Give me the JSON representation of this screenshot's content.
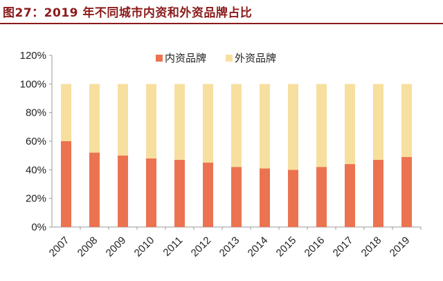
{
  "title": "图27：2019 年不同城市内资和外资品牌占比",
  "colors": {
    "domestic": "#ec7350",
    "foreign": "#f7df9f",
    "title": "#8b1a1a",
    "axis": "#999999"
  },
  "chart_data": {
    "type": "bar",
    "stacked": true,
    "title": "图27：2019 年不同城市内资和外资品牌占比",
    "categories": [
      "2007",
      "2008",
      "2009",
      "2010",
      "2011",
      "2012",
      "2013",
      "2014",
      "2015",
      "2016",
      "2017",
      "2018",
      "2019"
    ],
    "series": [
      {
        "name": "内资品牌",
        "values": [
          60,
          52,
          50,
          48,
          47,
          45,
          42,
          41,
          40,
          42,
          44,
          47,
          49
        ]
      },
      {
        "name": "外资品牌",
        "values": [
          40,
          48,
          50,
          52,
          53,
          55,
          58,
          59,
          60,
          58,
          56,
          53,
          51
        ]
      }
    ],
    "ylim": [
      0,
      120
    ],
    "yticks": [
      "0%",
      "20%",
      "40%",
      "60%",
      "80%",
      "100%",
      "120%"
    ],
    "legend_position": "top-center",
    "grid": false
  }
}
